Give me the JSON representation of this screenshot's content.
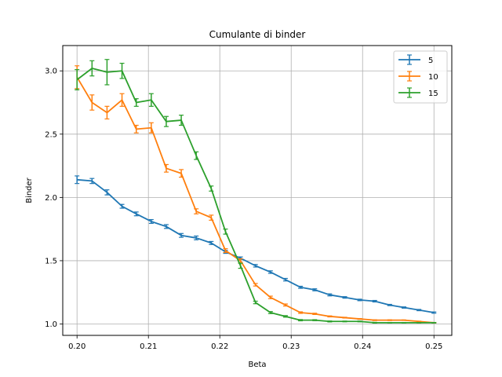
{
  "chart_data": {
    "type": "line",
    "title": "Cumulante di binder",
    "xlabel": "Beta",
    "ylabel": "Binder",
    "xlim": [
      0.198,
      0.2525
    ],
    "ylim": [
      0.91,
      3.2
    ],
    "xticks": [
      0.2,
      0.21,
      0.22,
      0.23,
      0.24,
      0.25
    ],
    "xtick_labels": [
      "0.20",
      "0.21",
      "0.22",
      "0.23",
      "0.24",
      "0.25"
    ],
    "yticks": [
      1.0,
      1.5,
      2.0,
      2.5,
      3.0
    ],
    "ytick_labels": [
      "1.0",
      "1.5",
      "2.0",
      "2.5",
      "3.0"
    ],
    "grid": true,
    "legend_position": "top-right",
    "x": [
      0.2,
      0.2021,
      0.2042,
      0.2063,
      0.2083,
      0.2104,
      0.2125,
      0.2146,
      0.2167,
      0.2188,
      0.2208,
      0.2229,
      0.225,
      0.2271,
      0.2292,
      0.2313,
      0.2333,
      0.2354,
      0.2375,
      0.2396,
      0.2417,
      0.2438,
      0.2458,
      0.2479,
      0.25
    ],
    "series": [
      {
        "name": "5",
        "color": "#1f77b4",
        "values": [
          2.14,
          2.13,
          2.04,
          1.93,
          1.87,
          1.81,
          1.77,
          1.7,
          1.68,
          1.64,
          1.57,
          1.52,
          1.46,
          1.41,
          1.35,
          1.29,
          1.27,
          1.23,
          1.21,
          1.19,
          1.18,
          1.15,
          1.13,
          1.11,
          1.09
        ],
        "errors": [
          0.03,
          0.02,
          0.02,
          0.015,
          0.015,
          0.015,
          0.015,
          0.015,
          0.015,
          0.012,
          0.012,
          0.01,
          0.01,
          0.01,
          0.01,
          0.008,
          0.008,
          0.008,
          0.006,
          0.006,
          0.006,
          0.005,
          0.005,
          0.005,
          0.005
        ]
      },
      {
        "name": "10",
        "color": "#ff7f0e",
        "values": [
          2.95,
          2.75,
          2.67,
          2.77,
          2.54,
          2.55,
          2.23,
          2.19,
          1.89,
          1.84,
          1.58,
          1.5,
          1.31,
          1.21,
          1.15,
          1.09,
          1.08,
          1.06,
          1.05,
          1.04,
          1.03,
          1.03,
          1.03,
          1.02,
          1.01
        ],
        "errors": [
          0.09,
          0.06,
          0.05,
          0.05,
          0.03,
          0.04,
          0.03,
          0.03,
          0.02,
          0.02,
          0.015,
          0.015,
          0.01,
          0.01,
          0.008,
          0.006,
          0.005,
          0.004,
          0.003,
          0.003,
          0.003,
          0.003,
          0.002,
          0.002,
          0.002
        ]
      },
      {
        "name": "15",
        "color": "#2ca02c",
        "values": [
          2.93,
          3.02,
          2.99,
          3.0,
          2.75,
          2.77,
          2.6,
          2.61,
          2.33,
          2.07,
          1.73,
          1.46,
          1.17,
          1.09,
          1.06,
          1.03,
          1.03,
          1.02,
          1.02,
          1.02,
          1.01,
          1.01,
          1.01,
          1.01,
          1.01
        ],
        "errors": [
          0.08,
          0.06,
          0.1,
          0.06,
          0.03,
          0.05,
          0.04,
          0.04,
          0.03,
          0.02,
          0.02,
          0.02,
          0.01,
          0.008,
          0.006,
          0.005,
          0.004,
          0.004,
          0.003,
          0.003,
          0.003,
          0.002,
          0.002,
          0.002,
          0.002
        ]
      }
    ]
  }
}
